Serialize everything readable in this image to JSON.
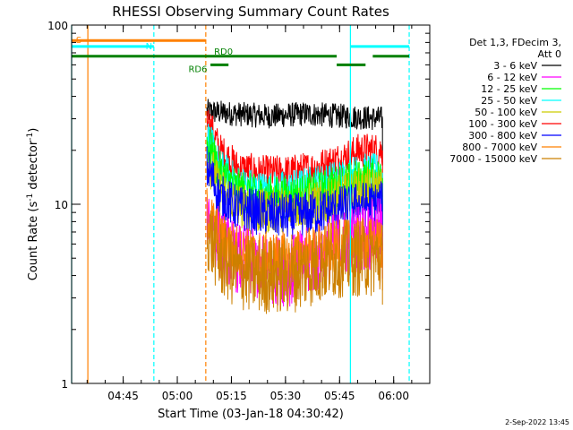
{
  "chart_data": {
    "type": "line",
    "title": "RHESSI Observing Summary Count Rates",
    "xlabel": "Start Time (03-Jan-18 04:30:42)",
    "ylabel_main": "Count Rate (s",
    "ylabel_sup1": "-1",
    "ylabel_mid": " detector",
    "ylabel_sup2": "-1",
    "ylabel_end": ")",
    "yscale": "log",
    "ylim": [
      1,
      100
    ],
    "xlim": [
      "04:30:42",
      "06:10:00"
    ],
    "x_ticks": [
      "04:45",
      "05:00",
      "05:15",
      "05:30",
      "05:45",
      "06:00"
    ],
    "x_tick_minutes": [
      14.3,
      29.3,
      44.3,
      59.3,
      74.3,
      89.3
    ],
    "y_ticks": [
      {
        "value": 1,
        "label": "1"
      },
      {
        "value": 10,
        "label": "10"
      },
      {
        "value": 100,
        "label": "100"
      }
    ],
    "legend": {
      "placement": "right",
      "header": [
        "Det 1,3, FDecim 3,",
        "Att 0"
      ],
      "entries": [
        {
          "label": "3 - 6 keV",
          "color": "#000000"
        },
        {
          "label": "6 - 12 keV",
          "color": "#ff00ff"
        },
        {
          "label": "12 - 25 keV",
          "color": "#00ff00"
        },
        {
          "label": "25 - 50 keV",
          "color": "#00ffff"
        },
        {
          "label": "50 - 100 keV",
          "color": "#cccc00"
        },
        {
          "label": "100 - 300 keV",
          "color": "#ff0000"
        },
        {
          "label": "300 - 800 keV",
          "color": "#0000ff"
        },
        {
          "label": "800 - 7000 keV",
          "color": "#ff8000"
        },
        {
          "label": "7000 - 15000 keV",
          "color": "#cc8000"
        }
      ]
    },
    "data_window_minutes": [
      37.5,
      86.2
    ],
    "series": [
      {
        "name": "3 - 6 keV",
        "color": "#000000",
        "profile": [
          [
            37.5,
            33
          ],
          [
            45,
            32
          ],
          [
            55,
            31
          ],
          [
            65,
            32
          ],
          [
            75,
            31
          ],
          [
            86.2,
            30
          ]
        ],
        "noise": 0.07
      },
      {
        "name": "100 - 300 keV",
        "color": "#ff0000",
        "profile": [
          [
            37.5,
            30
          ],
          [
            41,
            20
          ],
          [
            46,
            16
          ],
          [
            52,
            15
          ],
          [
            60,
            15
          ],
          [
            68,
            16
          ],
          [
            75,
            18
          ],
          [
            80,
            20
          ],
          [
            86.2,
            20
          ]
        ],
        "noise": 0.1
      },
      {
        "name": "25 - 50 keV",
        "color": "#00ffff",
        "profile": [
          [
            37.5,
            24
          ],
          [
            41,
            16
          ],
          [
            46,
            13
          ],
          [
            52,
            12
          ],
          [
            60,
            12
          ],
          [
            68,
            13
          ],
          [
            75,
            14
          ],
          [
            80,
            15
          ],
          [
            86.2,
            15
          ]
        ],
        "noise": 0.11
      },
      {
        "name": "12 - 25 keV",
        "color": "#00ff00",
        "profile": [
          [
            37.5,
            22
          ],
          [
            41,
            15
          ],
          [
            46,
            12
          ],
          [
            52,
            11
          ],
          [
            60,
            11
          ],
          [
            68,
            11.5
          ],
          [
            75,
            13
          ],
          [
            80,
            13.5
          ],
          [
            86.2,
            14
          ]
        ],
        "noise": 0.12
      },
      {
        "name": "50 - 100 keV",
        "color": "#cccc00",
        "profile": [
          [
            37.5,
            18
          ],
          [
            41,
            12
          ],
          [
            46,
            10
          ],
          [
            52,
            9
          ],
          [
            60,
            9.5
          ],
          [
            68,
            10
          ],
          [
            75,
            11
          ],
          [
            80,
            12
          ],
          [
            86.2,
            12
          ]
        ],
        "noise": 0.13
      },
      {
        "name": "300 - 800 keV",
        "color": "#0000ff",
        "profile": [
          [
            37.5,
            16
          ],
          [
            41,
            11
          ],
          [
            46,
            9.5
          ],
          [
            52,
            9
          ],
          [
            60,
            8.5
          ],
          [
            68,
            9
          ],
          [
            75,
            9.5
          ],
          [
            80,
            10
          ],
          [
            86.2,
            10
          ]
        ],
        "noise": 0.13
      },
      {
        "name": "6 - 12 keV",
        "color": "#ff00ff",
        "profile": [
          [
            37.5,
            9
          ],
          [
            41,
            6
          ],
          [
            46,
            5
          ],
          [
            52,
            4.5
          ],
          [
            60,
            4.2
          ],
          [
            68,
            5
          ],
          [
            75,
            6
          ],
          [
            80,
            6.5
          ],
          [
            86.2,
            7
          ]
        ],
        "noise": 0.2
      },
      {
        "name": "800 - 7000 keV",
        "color": "#ff8000",
        "profile": [
          [
            37.5,
            9
          ],
          [
            41,
            6.5
          ],
          [
            46,
            5.5
          ],
          [
            52,
            5
          ],
          [
            60,
            5
          ],
          [
            68,
            5.5
          ],
          [
            75,
            5.8
          ],
          [
            80,
            6
          ],
          [
            86.2,
            6
          ]
        ],
        "noise": 0.15
      },
      {
        "name": "7000 - 15000 keV",
        "color": "#cc8000",
        "profile": [
          [
            37.5,
            7
          ],
          [
            41,
            5
          ],
          [
            46,
            4.2
          ],
          [
            52,
            4
          ],
          [
            60,
            4
          ],
          [
            68,
            4.5
          ],
          [
            75,
            5
          ],
          [
            80,
            5
          ],
          [
            86.2,
            5
          ]
        ],
        "noise": 0.22
      }
    ],
    "vertical_lines": [
      {
        "x": 0,
        "color": "#00ffff",
        "style": "solid"
      },
      {
        "x": 4.5,
        "color": "#ff8000",
        "style": "solid"
      },
      {
        "x": 22.8,
        "color": "#00ffff",
        "style": "dashed"
      },
      {
        "x": 37.2,
        "color": "#ff8000",
        "style": "dashed"
      },
      {
        "x": 77.3,
        "color": "#00ffff",
        "style": "solid"
      },
      {
        "x": 93.6,
        "color": "#00ffff",
        "style": "dashed"
      }
    ],
    "bars": [
      {
        "label": "S",
        "color": "#ff8000",
        "level": 82,
        "segments": [
          [
            0,
            37.2
          ]
        ]
      },
      {
        "label": "N",
        "color": "#00ffff",
        "level": 76,
        "segments": [
          [
            0,
            22.8
          ],
          [
            77.3,
            93.6
          ]
        ]
      },
      {
        "label": "RD0",
        "color": "#008000",
        "level": 67,
        "segments": [
          [
            0,
            73.5
          ],
          [
            83.5,
            93.6
          ]
        ]
      },
      {
        "label": "RD6",
        "color": "#008000",
        "level": 60,
        "segments": [
          [
            38.5,
            43.5
          ],
          [
            73.5,
            81.5
          ]
        ]
      }
    ]
  },
  "footer": {
    "date": "2-Sep-2022 13:45"
  }
}
